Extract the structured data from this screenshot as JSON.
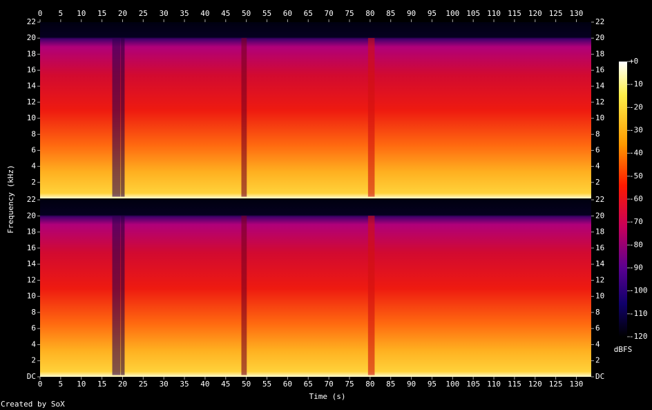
{
  "chart_data": {
    "type": "spectrogram",
    "xlabel": "Time (s)",
    "ylabel": "Frequency (kHz)",
    "footer": "Created by SoX",
    "xlim": [
      0,
      133.6
    ],
    "xticks": [
      0,
      5,
      10,
      15,
      20,
      25,
      30,
      35,
      40,
      45,
      50,
      55,
      60,
      65,
      70,
      75,
      80,
      85,
      90,
      95,
      100,
      105,
      110,
      115,
      120,
      125,
      130
    ],
    "channels": [
      {
        "ylim": [
          0,
          22
        ],
        "yticks": [
          2,
          4,
          6,
          8,
          10,
          12,
          14,
          16,
          18,
          20,
          22
        ]
      },
      {
        "ylim": [
          0,
          22
        ],
        "yticks": [
          {
            "value": 0,
            "label": "DC"
          },
          2,
          4,
          6,
          8,
          10,
          12,
          14,
          16,
          18,
          20,
          22
        ]
      }
    ],
    "colorbar": {
      "label": "dBFS",
      "lim": [
        -120,
        0
      ],
      "ticks": [
        {
          "value": 0,
          "label": "+0"
        },
        -10,
        -20,
        -30,
        -40,
        -50,
        -60,
        -70,
        -80,
        -90,
        -100,
        -110,
        -120
      ]
    }
  }
}
